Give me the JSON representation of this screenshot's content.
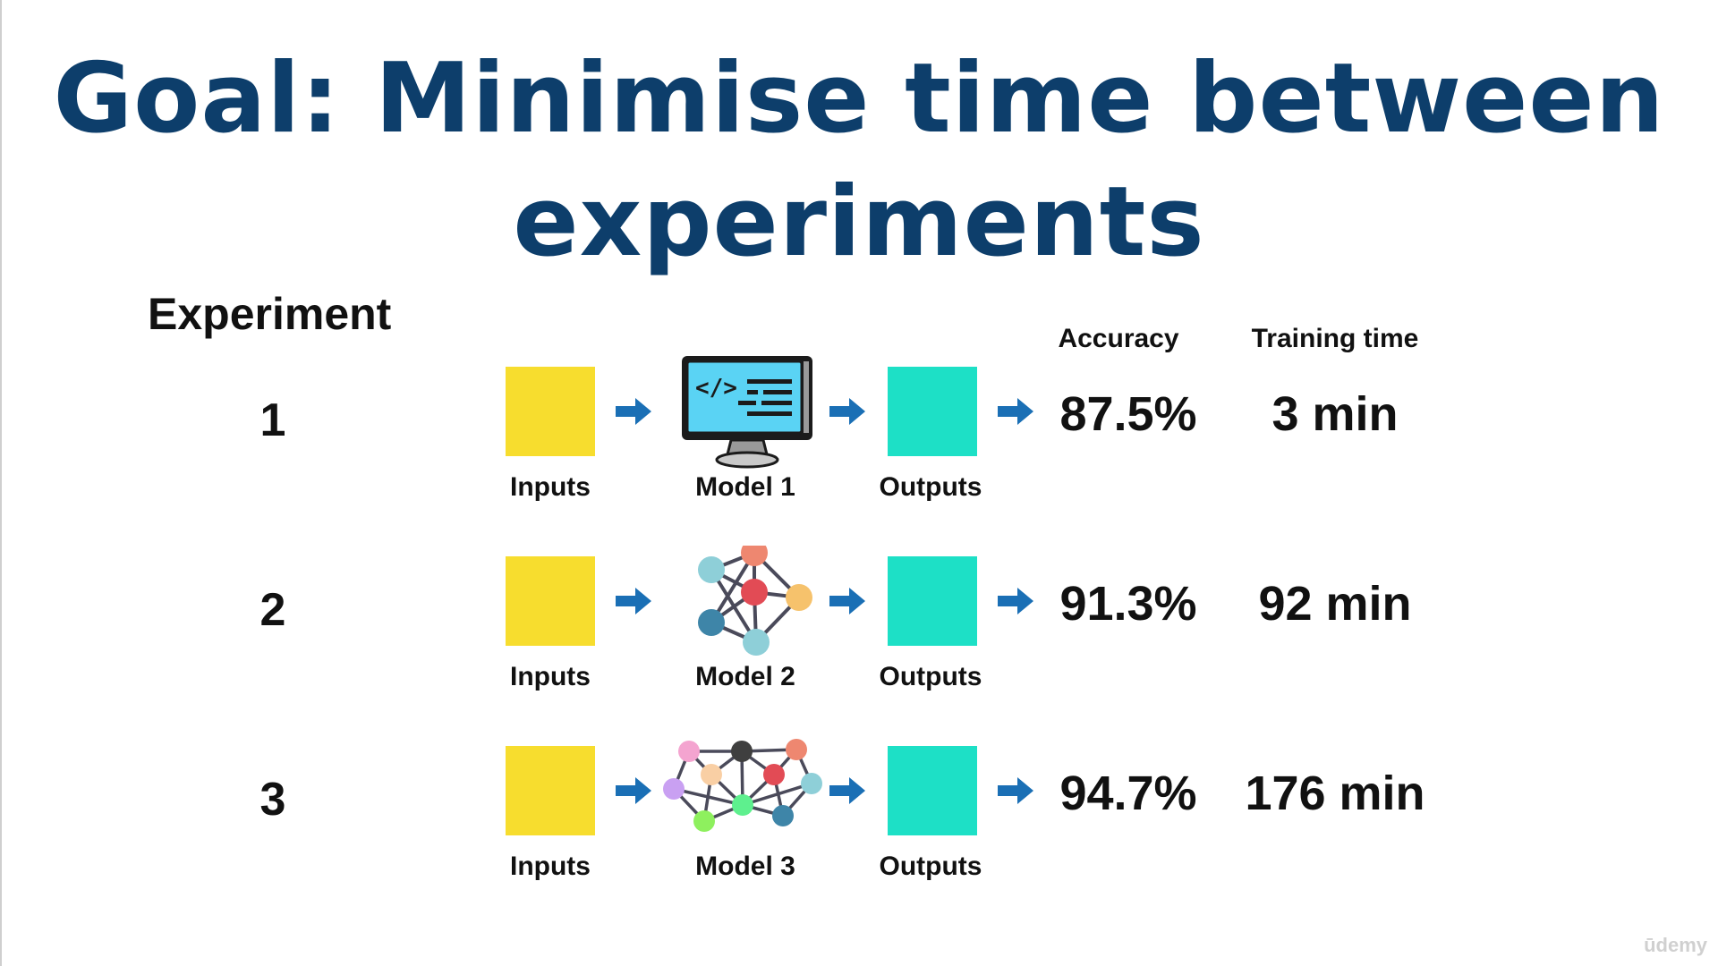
{
  "slide": {
    "title": "Goal: Minimise time between experiments",
    "experiment_header": "Experiment",
    "columns": {
      "accuracy": "Accuracy",
      "training_time": "Training time"
    }
  },
  "rows": [
    {
      "number": "1",
      "inputs": "Inputs",
      "model": "Model 1",
      "outputs": "Outputs",
      "accuracy": "87.5%",
      "training_time": "3 min",
      "model_icon": "computer-code-icon"
    },
    {
      "number": "2",
      "inputs": "Inputs",
      "model": "Model 2",
      "outputs": "Outputs",
      "accuracy": "91.3%",
      "training_time": "92 min",
      "model_icon": "small-network-icon"
    },
    {
      "number": "3",
      "inputs": "Inputs",
      "model": "Model 3",
      "outputs": "Outputs",
      "accuracy": "94.7%",
      "training_time": "176 min",
      "model_icon": "large-network-icon"
    }
  ],
  "watermark": "ūdemy",
  "colors": {
    "title": "#0d3e6b",
    "inputs": "#f7dd2e",
    "outputs": "#1de0c6",
    "arrow": "#1a6fb5"
  }
}
